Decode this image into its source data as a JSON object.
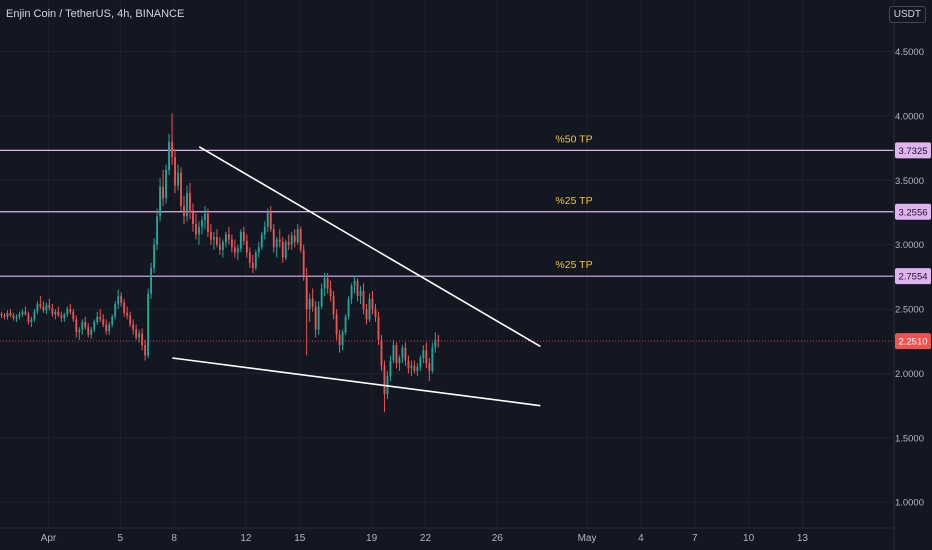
{
  "header": {
    "symbol": "Enjin Coin / TetherUS, 4h, BINANCE",
    "currency": "USDT"
  },
  "colors": {
    "background": "#131722",
    "grid": "#1e222d",
    "text": "#b2b5be",
    "up": "#26a69a",
    "down": "#ef5350",
    "level": "#e1b3f0",
    "level_label": "#f0c33c",
    "trendline": "#ffffff",
    "price_tag": "#ef5350"
  },
  "chart_data": {
    "type": "candlestick",
    "ylim": [
      0.8,
      4.9
    ],
    "xlim": [
      -1.7,
      48.1
    ],
    "y_ticks": [
      "4.5000",
      "4.0000",
      "3.5000",
      "3.0000",
      "2.5000",
      "2.0000",
      "1.5000",
      "1.0000"
    ],
    "x_ticks": [
      {
        "label": "Apr",
        "day": 1
      },
      {
        "label": "5",
        "day": 5
      },
      {
        "label": "8",
        "day": 8
      },
      {
        "label": "12",
        "day": 12
      },
      {
        "label": "15",
        "day": 15
      },
      {
        "label": "19",
        "day": 19
      },
      {
        "label": "22",
        "day": 22
      },
      {
        "label": "26",
        "day": 26
      },
      {
        "label": "May",
        "day": 31
      },
      {
        "label": "4",
        "day": 34
      },
      {
        "label": "7",
        "day": 37
      },
      {
        "label": "10",
        "day": 40
      },
      {
        "label": "13",
        "day": 43
      }
    ],
    "levels": [
      {
        "price": 3.7325,
        "label": "3.7325",
        "annotation": "%50 TP"
      },
      {
        "price": 3.2556,
        "label": "3.2556",
        "annotation": "%25 TP"
      },
      {
        "price": 2.7554,
        "label": "2.7554",
        "annotation": "%25 TP"
      }
    ],
    "current_price": {
      "price": 2.251,
      "label": "2.2510"
    },
    "trendlines": [
      {
        "start": [
          9.4,
          3.76
        ],
        "end": [
          28.4,
          2.21
        ]
      },
      {
        "start": [
          7.9,
          2.12
        ],
        "end": [
          28.4,
          1.75
        ]
      }
    ],
    "candles_start_day": -1.7,
    "candles_per_day": 6,
    "candles": [
      [
        2.46,
        2.48,
        2.43,
        2.45
      ],
      [
        2.45,
        2.47,
        2.42,
        2.44
      ],
      [
        2.44,
        2.49,
        2.42,
        2.47
      ],
      [
        2.47,
        2.5,
        2.44,
        2.45
      ],
      [
        2.45,
        2.47,
        2.41,
        2.43
      ],
      [
        2.43,
        2.46,
        2.4,
        2.44
      ],
      [
        2.44,
        2.48,
        2.42,
        2.46
      ],
      [
        2.46,
        2.5,
        2.44,
        2.48
      ],
      [
        2.48,
        2.52,
        2.45,
        2.46
      ],
      [
        2.46,
        2.48,
        2.38,
        2.4
      ],
      [
        2.4,
        2.44,
        2.36,
        2.42
      ],
      [
        2.42,
        2.5,
        2.4,
        2.48
      ],
      [
        2.48,
        2.56,
        2.46,
        2.54
      ],
      [
        2.54,
        2.6,
        2.5,
        2.52
      ],
      [
        2.52,
        2.56,
        2.47,
        2.49
      ],
      [
        2.49,
        2.55,
        2.46,
        2.53
      ],
      [
        2.53,
        2.58,
        2.49,
        2.51
      ],
      [
        2.51,
        2.54,
        2.44,
        2.46
      ],
      [
        2.46,
        2.5,
        2.42,
        2.48
      ],
      [
        2.48,
        2.52,
        2.44,
        2.45
      ],
      [
        2.45,
        2.48,
        2.4,
        2.43
      ],
      [
        2.43,
        2.47,
        2.4,
        2.46
      ],
      [
        2.46,
        2.52,
        2.44,
        2.5
      ],
      [
        2.5,
        2.54,
        2.46,
        2.48
      ],
      [
        2.48,
        2.5,
        2.4,
        2.42
      ],
      [
        2.42,
        2.45,
        2.28,
        2.32
      ],
      [
        2.32,
        2.36,
        2.26,
        2.34
      ],
      [
        2.34,
        2.42,
        2.3,
        2.4
      ],
      [
        2.4,
        2.44,
        2.34,
        2.36
      ],
      [
        2.36,
        2.39,
        2.28,
        2.3
      ],
      [
        2.3,
        2.36,
        2.27,
        2.34
      ],
      [
        2.34,
        2.42,
        2.32,
        2.4
      ],
      [
        2.4,
        2.48,
        2.38,
        2.44
      ],
      [
        2.44,
        2.5,
        2.4,
        2.42
      ],
      [
        2.42,
        2.46,
        2.36,
        2.38
      ],
      [
        2.38,
        2.42,
        2.3,
        2.33
      ],
      [
        2.33,
        2.4,
        2.3,
        2.38
      ],
      [
        2.38,
        2.46,
        2.36,
        2.44
      ],
      [
        2.44,
        2.56,
        2.42,
        2.54
      ],
      [
        2.54,
        2.65,
        2.5,
        2.6
      ],
      [
        2.6,
        2.63,
        2.52,
        2.55
      ],
      [
        2.55,
        2.58,
        2.44,
        2.47
      ],
      [
        2.47,
        2.52,
        2.42,
        2.45
      ],
      [
        2.45,
        2.48,
        2.36,
        2.38
      ],
      [
        2.38,
        2.42,
        2.3,
        2.34
      ],
      [
        2.34,
        2.38,
        2.26,
        2.28
      ],
      [
        2.28,
        2.34,
        2.24,
        2.31
      ],
      [
        2.31,
        2.35,
        2.18,
        2.22
      ],
      [
        2.22,
        2.26,
        2.1,
        2.14
      ],
      [
        2.14,
        2.66,
        2.12,
        2.62
      ],
      [
        2.62,
        2.86,
        2.58,
        2.82
      ],
      [
        2.82,
        3.05,
        2.78,
        3.0
      ],
      [
        3.0,
        3.28,
        2.96,
        3.22
      ],
      [
        3.22,
        3.52,
        3.18,
        3.45
      ],
      [
        3.45,
        3.58,
        3.3,
        3.36
      ],
      [
        3.36,
        3.62,
        3.32,
        3.58
      ],
      [
        3.58,
        3.86,
        3.54,
        3.8
      ],
      [
        3.8,
        4.02,
        3.62,
        3.68
      ],
      [
        3.68,
        3.74,
        3.4,
        3.46
      ],
      [
        3.46,
        3.62,
        3.42,
        3.56
      ],
      [
        3.56,
        3.6,
        3.26,
        3.3
      ],
      [
        3.3,
        3.38,
        3.16,
        3.22
      ],
      [
        3.22,
        3.46,
        3.18,
        3.4
      ],
      [
        3.4,
        3.48,
        3.2,
        3.25
      ],
      [
        3.25,
        3.32,
        3.1,
        3.16
      ],
      [
        3.16,
        3.24,
        3.04,
        3.08
      ],
      [
        3.08,
        3.18,
        3.0,
        3.14
      ],
      [
        3.14,
        3.22,
        3.08,
        3.19
      ],
      [
        3.19,
        3.3,
        3.12,
        3.24
      ],
      [
        3.24,
        3.28,
        3.06,
        3.1
      ],
      [
        3.1,
        3.16,
        3.0,
        3.04
      ],
      [
        3.04,
        3.1,
        2.96,
        3.06
      ],
      [
        3.06,
        3.12,
        2.98,
        3.0
      ],
      [
        3.0,
        3.06,
        2.92,
        2.96
      ],
      [
        2.96,
        3.04,
        2.9,
        3.02
      ],
      [
        3.02,
        3.1,
        2.98,
        3.08
      ],
      [
        3.08,
        3.14,
        3.0,
        3.04
      ],
      [
        3.04,
        3.08,
        2.94,
        2.98
      ],
      [
        2.98,
        3.04,
        2.9,
        2.94
      ],
      [
        2.94,
        3.0,
        2.88,
        2.97
      ],
      [
        2.97,
        3.12,
        2.94,
        3.1
      ],
      [
        3.1,
        3.14,
        3.0,
        3.03
      ],
      [
        3.03,
        3.08,
        2.9,
        2.94
      ],
      [
        2.94,
        2.98,
        2.82,
        2.86
      ],
      [
        2.86,
        2.92,
        2.78,
        2.82
      ],
      [
        2.82,
        2.96,
        2.8,
        2.94
      ],
      [
        2.94,
        3.02,
        2.9,
        2.98
      ],
      [
        2.98,
        3.1,
        2.96,
        3.08
      ],
      [
        3.08,
        3.18,
        3.04,
        3.14
      ],
      [
        3.14,
        3.28,
        3.1,
        3.25
      ],
      [
        3.25,
        3.3,
        3.1,
        3.12
      ],
      [
        3.12,
        3.16,
        2.94,
        2.98
      ],
      [
        2.98,
        3.06,
        2.9,
        3.04
      ],
      [
        3.04,
        3.12,
        2.98,
        3.02
      ],
      [
        3.02,
        3.06,
        2.86,
        2.9
      ],
      [
        2.9,
        3.04,
        2.88,
        3.02
      ],
      [
        3.02,
        3.08,
        2.96,
        3.0
      ],
      [
        3.0,
        3.1,
        2.96,
        3.07
      ],
      [
        3.07,
        3.12,
        2.98,
        3.02
      ],
      [
        3.02,
        3.16,
        3.0,
        3.12
      ],
      [
        3.12,
        3.14,
        2.94,
        2.96
      ],
      [
        2.96,
        3.0,
        2.72,
        2.76
      ],
      [
        2.76,
        2.82,
        2.14,
        2.5
      ],
      [
        2.5,
        2.62,
        2.4,
        2.58
      ],
      [
        2.58,
        2.66,
        2.48,
        2.52
      ],
      [
        2.52,
        2.56,
        2.28,
        2.34
      ],
      [
        2.34,
        2.56,
        2.3,
        2.52
      ],
      [
        2.52,
        2.7,
        2.5,
        2.66
      ],
      [
        2.66,
        2.78,
        2.6,
        2.74
      ],
      [
        2.74,
        2.78,
        2.62,
        2.66
      ],
      [
        2.66,
        2.72,
        2.56,
        2.6
      ],
      [
        2.6,
        2.64,
        2.42,
        2.46
      ],
      [
        2.46,
        2.5,
        2.26,
        2.3
      ],
      [
        2.3,
        2.34,
        2.16,
        2.22
      ],
      [
        2.22,
        2.34,
        2.18,
        2.32
      ],
      [
        2.32,
        2.46,
        2.3,
        2.44
      ],
      [
        2.44,
        2.6,
        2.42,
        2.58
      ],
      [
        2.58,
        2.7,
        2.54,
        2.68
      ],
      [
        2.68,
        2.76,
        2.62,
        2.72
      ],
      [
        2.72,
        2.74,
        2.56,
        2.6
      ],
      [
        2.6,
        2.68,
        2.54,
        2.64
      ],
      [
        2.64,
        2.7,
        2.46,
        2.5
      ],
      [
        2.5,
        2.54,
        2.38,
        2.42
      ],
      [
        2.42,
        2.62,
        2.4,
        2.58
      ],
      [
        2.58,
        2.64,
        2.46,
        2.5
      ],
      [
        2.5,
        2.54,
        2.4,
        2.44
      ],
      [
        2.44,
        2.48,
        2.22,
        2.26
      ],
      [
        2.26,
        2.3,
        2.02,
        2.06
      ],
      [
        2.06,
        2.1,
        1.7,
        1.84
      ],
      [
        1.84,
        2.02,
        1.8,
        1.98
      ],
      [
        1.98,
        2.14,
        1.94,
        2.1
      ],
      [
        2.1,
        2.26,
        2.08,
        2.22
      ],
      [
        2.22,
        2.24,
        2.04,
        2.08
      ],
      [
        2.08,
        2.14,
        2.02,
        2.12
      ],
      [
        2.12,
        2.22,
        2.08,
        2.2
      ],
      [
        2.2,
        2.24,
        2.06,
        2.1
      ],
      [
        2.1,
        2.14,
        2.0,
        2.04
      ],
      [
        2.04,
        2.1,
        1.98,
        2.06
      ],
      [
        2.06,
        2.1,
        2.0,
        2.02
      ],
      [
        2.02,
        2.08,
        1.98,
        2.05
      ],
      [
        2.05,
        2.14,
        2.02,
        2.12
      ],
      [
        2.12,
        2.22,
        2.08,
        2.18
      ],
      [
        2.18,
        2.24,
        2.04,
        2.08
      ],
      [
        2.08,
        2.12,
        1.94,
        2.02
      ],
      [
        2.02,
        2.24,
        2.0,
        2.2
      ],
      [
        2.2,
        2.32,
        2.16,
        2.26
      ],
      [
        2.26,
        2.3,
        2.2,
        2.25
      ]
    ]
  }
}
